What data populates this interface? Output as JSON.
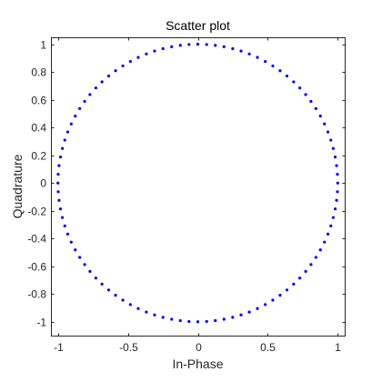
{
  "chart_data": {
    "type": "scatter",
    "title": "Scatter plot",
    "xlabel": "In-Phase",
    "ylabel": "Quadrature",
    "xlim": [
      -1.05,
      1.05
    ],
    "ylim": [
      -1.1,
      1.05
    ],
    "xticks": [
      -1,
      -0.5,
      0,
      0.5,
      1
    ],
    "xtick_labels": [
      "-1",
      "-0.5",
      "0",
      "0.5",
      "1"
    ],
    "yticks": [
      -1,
      -0.8,
      -0.6,
      -0.4,
      -0.2,
      0,
      0.2,
      0.4,
      0.6,
      0.8,
      1
    ],
    "ytick_labels": [
      "-1",
      "-0.8",
      "-0.6",
      "-0.4",
      "-0.2",
      "0",
      "0.2",
      "0.4",
      "0.6",
      "0.8",
      "1"
    ],
    "grid": false,
    "legend": null,
    "marker_color": "#0000ff",
    "series": [
      {
        "x": [
          1,
          0.998,
          0.992,
          0.982,
          0.968,
          0.951,
          0.93,
          0.905,
          0.876,
          0.844,
          0.809,
          0.771,
          0.729,
          0.685,
          0.637,
          0.588,
          0.536,
          0.482,
          0.426,
          0.368,
          0.309,
          0.249,
          0.187,
          0.125,
          0.063,
          0,
          -0.063,
          -0.125,
          -0.187,
          -0.249,
          -0.309,
          -0.368,
          -0.426,
          -0.482,
          -0.536,
          -0.588,
          -0.637,
          -0.685,
          -0.729,
          -0.771,
          -0.809,
          -0.844,
          -0.876,
          -0.905,
          -0.93,
          -0.951,
          -0.968,
          -0.982,
          -0.992,
          -0.998,
          -1,
          -0.998,
          -0.992,
          -0.982,
          -0.968,
          -0.951,
          -0.93,
          -0.905,
          -0.876,
          -0.844,
          -0.809,
          -0.771,
          -0.729,
          -0.685,
          -0.637,
          -0.588,
          -0.536,
          -0.482,
          -0.426,
          -0.368,
          -0.309,
          -0.249,
          -0.187,
          -0.125,
          -0.063,
          0,
          0.063,
          0.125,
          0.187,
          0.249,
          0.309,
          0.368,
          0.426,
          0.482,
          0.536,
          0.588,
          0.637,
          0.685,
          0.729,
          0.771,
          0.809,
          0.844,
          0.876,
          0.905,
          0.93,
          0.951,
          0.968,
          0.982,
          0.992,
          0.998
        ],
        "y": [
          0,
          0.063,
          0.125,
          0.187,
          0.249,
          0.309,
          0.368,
          0.426,
          0.482,
          0.536,
          0.588,
          0.637,
          0.685,
          0.729,
          0.771,
          0.809,
          0.844,
          0.876,
          0.905,
          0.93,
          0.951,
          0.968,
          0.982,
          0.992,
          0.998,
          1,
          0.998,
          0.992,
          0.982,
          0.968,
          0.951,
          0.93,
          0.905,
          0.876,
          0.844,
          0.809,
          0.771,
          0.729,
          0.685,
          0.637,
          0.588,
          0.536,
          0.482,
          0.426,
          0.368,
          0.309,
          0.249,
          0.187,
          0.125,
          0.063,
          0,
          -0.063,
          -0.125,
          -0.187,
          -0.249,
          -0.309,
          -0.368,
          -0.426,
          -0.482,
          -0.536,
          -0.588,
          -0.637,
          -0.685,
          -0.729,
          -0.771,
          -0.809,
          -0.844,
          -0.876,
          -0.905,
          -0.93,
          -0.951,
          -0.968,
          -0.982,
          -0.992,
          -0.998,
          -1,
          -0.998,
          -0.992,
          -0.982,
          -0.968,
          -0.951,
          -0.93,
          -0.905,
          -0.876,
          -0.844,
          -0.809,
          -0.771,
          -0.729,
          -0.685,
          -0.637,
          -0.588,
          -0.536,
          -0.482,
          -0.426,
          -0.368,
          -0.309,
          -0.249,
          -0.187,
          -0.125,
          -0.063
        ]
      }
    ]
  }
}
